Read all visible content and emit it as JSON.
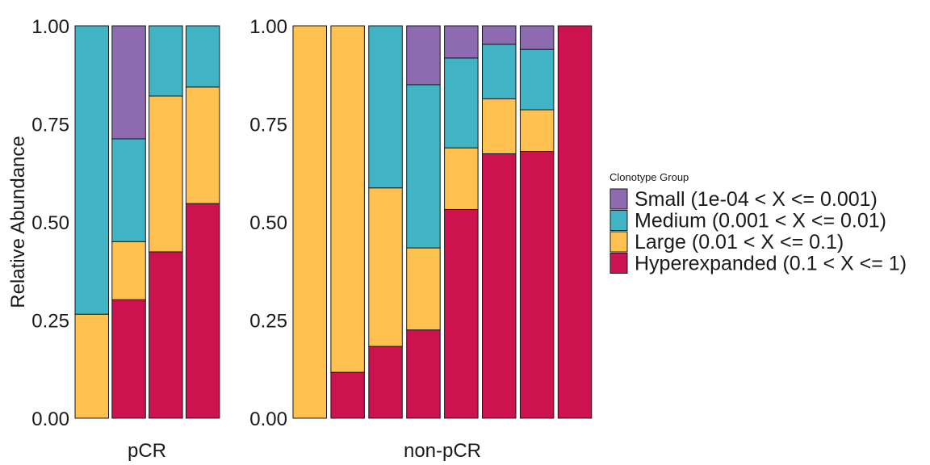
{
  "chart_data": {
    "type": "bar",
    "stacked": true,
    "ylabel": "Relative Abundance",
    "ylim": [
      0,
      1
    ],
    "yticks": [
      "0.00",
      "0.25",
      "0.50",
      "0.75",
      "1.00"
    ],
    "legend": {
      "title": "Clonotype Group",
      "position": "right",
      "entries": [
        {
          "name": "Small (1e-04 < X <= 0.001)",
          "color": "#8E6BB0"
        },
        {
          "name": "Medium (0.001 < X <= 0.01)",
          "color": "#40B4C5"
        },
        {
          "name": "Large (0.01 < X <= 0.1)",
          "color": "#FFC150"
        },
        {
          "name": "Hyperexpanded (0.1 < X <= 1)",
          "color": "#CC1350"
        }
      ]
    },
    "stack_order_bottom_to_top": [
      "Hyperexpanded",
      "Large",
      "Medium",
      "Small"
    ],
    "panels": [
      {
        "label": "pCR",
        "bars": [
          {
            "Hyperexpanded": 0.0,
            "Large": 0.265,
            "Medium": 0.735,
            "Small": 0.0
          },
          {
            "Hyperexpanded": 0.302,
            "Large": 0.148,
            "Medium": 0.262,
            "Small": 0.288
          },
          {
            "Hyperexpanded": 0.424,
            "Large": 0.397,
            "Medium": 0.179,
            "Small": 0.0
          },
          {
            "Hyperexpanded": 0.547,
            "Large": 0.297,
            "Medium": 0.156,
            "Small": 0.0
          }
        ]
      },
      {
        "label": "non-pCR",
        "bars": [
          {
            "Hyperexpanded": 0.0,
            "Large": 1.0,
            "Medium": 0.0,
            "Small": 0.0
          },
          {
            "Hyperexpanded": 0.117,
            "Large": 0.883,
            "Medium": 0.0,
            "Small": 0.0
          },
          {
            "Hyperexpanded": 0.183,
            "Large": 0.404,
            "Medium": 0.413,
            "Small": 0.0
          },
          {
            "Hyperexpanded": 0.225,
            "Large": 0.209,
            "Medium": 0.416,
            "Small": 0.15
          },
          {
            "Hyperexpanded": 0.532,
            "Large": 0.157,
            "Medium": 0.229,
            "Small": 0.082
          },
          {
            "Hyperexpanded": 0.674,
            "Large": 0.14,
            "Medium": 0.139,
            "Small": 0.047
          },
          {
            "Hyperexpanded": 0.68,
            "Large": 0.106,
            "Medium": 0.154,
            "Small": 0.06
          },
          {
            "Hyperexpanded": 1.0,
            "Large": 0.0,
            "Medium": 0.0,
            "Small": 0.0
          }
        ]
      }
    ]
  }
}
